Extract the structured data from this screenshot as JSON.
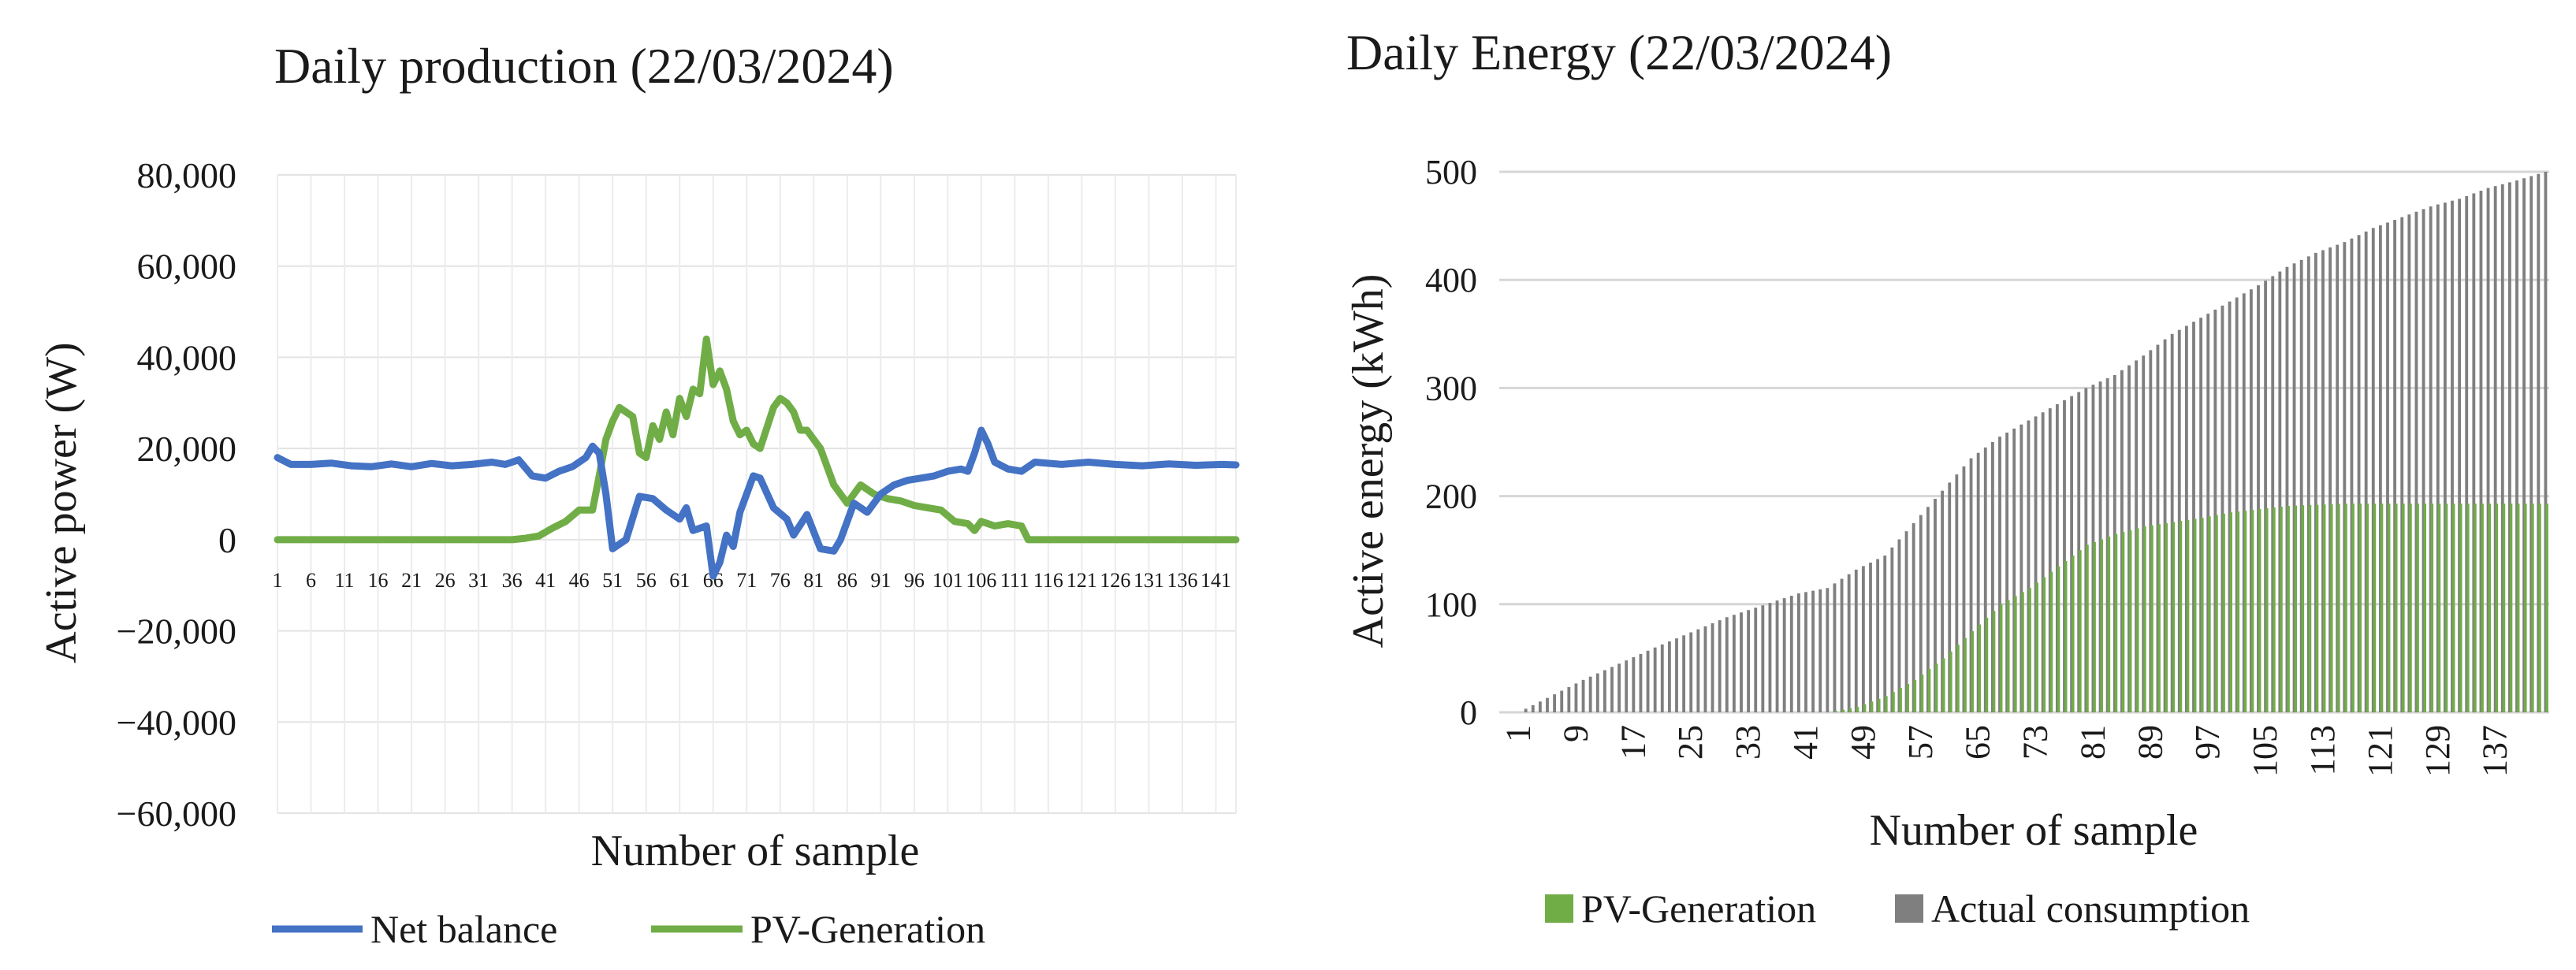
{
  "charts": {
    "left": {
      "title": "Daily production (22/03/2024)",
      "xlabel": "Number of sample",
      "ylabel": "Active power (W)",
      "ytick_labels": [
        "80,000",
        "60,000",
        "40,000",
        "20,000",
        "0",
        "−20,000",
        "−40,000",
        "−60,000"
      ],
      "legend": [
        "Net balance",
        "PV-Generation"
      ]
    },
    "right": {
      "title": "Daily Energy (22/03/2024)",
      "xlabel": "Number of sample",
      "ylabel": "Active energy (kWh)",
      "ytick_labels": [
        "500",
        "400",
        "300",
        "200",
        "100",
        "0"
      ],
      "legend": [
        "PV-Generation",
        "Actual consumption"
      ]
    }
  },
  "chart_data": [
    {
      "type": "line",
      "title": "Daily production (22/03/2024)",
      "xlabel": "Number of sample",
      "ylabel": "Active power (W)",
      "xlim": [
        1,
        144
      ],
      "ylim": [
        -60000,
        80000
      ],
      "x_tick_labels": [
        "1",
        "6",
        "11",
        "16",
        "21",
        "26",
        "31",
        "36",
        "41",
        "46",
        "51",
        "56",
        "61",
        "66",
        "71",
        "76",
        "81",
        "86",
        "91",
        "96",
        "101",
        "106",
        "111",
        "116",
        "121",
        "126",
        "131",
        "136",
        "141"
      ],
      "grid": true,
      "legend_position": "bottom",
      "series": [
        {
          "name": "Net balance",
          "color": "#4472C4",
          "points": [
            [
              1,
              18000
            ],
            [
              3,
              16500
            ],
            [
              6,
              16500
            ],
            [
              9,
              16800
            ],
            [
              12,
              16200
            ],
            [
              15,
              16000
            ],
            [
              18,
              16600
            ],
            [
              21,
              16000
            ],
            [
              24,
              16700
            ],
            [
              27,
              16200
            ],
            [
              30,
              16500
            ],
            [
              33,
              17000
            ],
            [
              35,
              16500
            ],
            [
              37,
              17500
            ],
            [
              39,
              14000
            ],
            [
              41,
              13500
            ],
            [
              43,
              15000
            ],
            [
              45,
              16000
            ],
            [
              47,
              18000
            ],
            [
              48,
              20500
            ],
            [
              49,
              19000
            ],
            [
              50,
              10000
            ],
            [
              51,
              -2000
            ],
            [
              53,
              0
            ],
            [
              55,
              9500
            ],
            [
              57,
              9000
            ],
            [
              59,
              6500
            ],
            [
              61,
              4500
            ],
            [
              62,
              7000
            ],
            [
              63,
              2000
            ],
            [
              65,
              3000
            ],
            [
              66,
              -8000
            ],
            [
              67,
              -5000
            ],
            [
              68,
              1000
            ],
            [
              69,
              -1500
            ],
            [
              70,
              6000
            ],
            [
              72,
              14000
            ],
            [
              73,
              13500
            ],
            [
              75,
              7000
            ],
            [
              77,
              4500
            ],
            [
              78,
              1000
            ],
            [
              80,
              5500
            ],
            [
              82,
              -2000
            ],
            [
              84,
              -2500
            ],
            [
              85,
              0
            ],
            [
              87,
              8000
            ],
            [
              89,
              6000
            ],
            [
              91,
              10000
            ],
            [
              93,
              12000
            ],
            [
              95,
              13000
            ],
            [
              97,
              13500
            ],
            [
              99,
              14000
            ],
            [
              101,
              15000
            ],
            [
              103,
              15500
            ],
            [
              104,
              15000
            ],
            [
              105,
              19000
            ],
            [
              106,
              24000
            ],
            [
              107,
              21000
            ],
            [
              108,
              17000
            ],
            [
              110,
              15500
            ],
            [
              112,
              15000
            ],
            [
              114,
              17000
            ],
            [
              118,
              16500
            ],
            [
              122,
              17000
            ],
            [
              126,
              16500
            ],
            [
              130,
              16200
            ],
            [
              134,
              16600
            ],
            [
              138,
              16300
            ],
            [
              142,
              16500
            ],
            [
              144,
              16400
            ]
          ]
        },
        {
          "name": "PV-Generation",
          "color": "#70AD47",
          "points": [
            [
              1,
              0
            ],
            [
              36,
              0
            ],
            [
              38,
              300
            ],
            [
              40,
              800
            ],
            [
              42,
              2500
            ],
            [
              44,
              4000
            ],
            [
              46,
              6500
            ],
            [
              48,
              6500
            ],
            [
              49,
              14000
            ],
            [
              50,
              22000
            ],
            [
              51,
              26000
            ],
            [
              52,
              29000
            ],
            [
              53,
              28000
            ],
            [
              54,
              27000
            ],
            [
              55,
              19000
            ],
            [
              56,
              18000
            ],
            [
              57,
              25000
            ],
            [
              58,
              22000
            ],
            [
              59,
              28000
            ],
            [
              60,
              23000
            ],
            [
              61,
              31000
            ],
            [
              62,
              27000
            ],
            [
              63,
              33000
            ],
            [
              64,
              32000
            ],
            [
              65,
              44000
            ],
            [
              66,
              34000
            ],
            [
              67,
              37000
            ],
            [
              68,
              33000
            ],
            [
              69,
              26000
            ],
            [
              70,
              23000
            ],
            [
              71,
              24000
            ],
            [
              72,
              21000
            ],
            [
              73,
              20000
            ],
            [
              75,
              29000
            ],
            [
              76,
              31000
            ],
            [
              77,
              30000
            ],
            [
              78,
              28000
            ],
            [
              79,
              24000
            ],
            [
              80,
              24000
            ],
            [
              81,
              22000
            ],
            [
              82,
              20000
            ],
            [
              84,
              12000
            ],
            [
              86,
              8000
            ],
            [
              88,
              12000
            ],
            [
              90,
              10000
            ],
            [
              92,
              9000
            ],
            [
              94,
              8500
            ],
            [
              96,
              7500
            ],
            [
              98,
              7000
            ],
            [
              100,
              6500
            ],
            [
              102,
              4000
            ],
            [
              104,
              3500
            ],
            [
              105,
              2000
            ],
            [
              106,
              4000
            ],
            [
              108,
              3000
            ],
            [
              110,
              3500
            ],
            [
              112,
              3000
            ],
            [
              113,
              0
            ],
            [
              144,
              0
            ]
          ]
        }
      ]
    },
    {
      "type": "bar",
      "title": "Daily Energy (22/03/2024)",
      "xlabel": "Number of sample",
      "ylabel": "Active energy (kWh)",
      "n_samples": 144,
      "ylim": [
        0,
        500
      ],
      "x_tick_labels": [
        "1",
        "9",
        "17",
        "25",
        "33",
        "41",
        "49",
        "57",
        "65",
        "73",
        "81",
        "89",
        "97",
        "105",
        "113",
        "121",
        "129",
        "137"
      ],
      "grid": true,
      "legend_position": "bottom",
      "series": [
        {
          "name": "PV-Generation",
          "color": "#70AD47",
          "points": [
            [
              1,
              0
            ],
            [
              44,
              0
            ],
            [
              48,
              5
            ],
            [
              52,
              15
            ],
            [
              56,
              30
            ],
            [
              60,
              50
            ],
            [
              64,
              75
            ],
            [
              68,
              100
            ],
            [
              72,
              115
            ],
            [
              76,
              135
            ],
            [
              80,
              155
            ],
            [
              84,
              165
            ],
            [
              88,
              172
            ],
            [
              92,
              176
            ],
            [
              96,
              180
            ],
            [
              100,
              185
            ],
            [
              104,
              188
            ],
            [
              108,
              191
            ],
            [
              112,
              192
            ],
            [
              116,
              193
            ],
            [
              144,
              193
            ]
          ]
        },
        {
          "name": "Actual consumption",
          "color": "#7F7F7F",
          "points": [
            [
              1,
              0
            ],
            [
              10,
              30
            ],
            [
              20,
              60
            ],
            [
              30,
              88
            ],
            [
              40,
              110
            ],
            [
              44,
              115
            ],
            [
              48,
              132
            ],
            [
              52,
              145
            ],
            [
              56,
              175
            ],
            [
              60,
              205
            ],
            [
              64,
              235
            ],
            [
              68,
              255
            ],
            [
              72,
              270
            ],
            [
              76,
              285
            ],
            [
              80,
              300
            ],
            [
              84,
              312
            ],
            [
              88,
              330
            ],
            [
              92,
              350
            ],
            [
              96,
              365
            ],
            [
              100,
              380
            ],
            [
              104,
              395
            ],
            [
              108,
              412
            ],
            [
              112,
              425
            ],
            [
              116,
              435
            ],
            [
              120,
              448
            ],
            [
              124,
              458
            ],
            [
              128,
              468
            ],
            [
              132,
              475
            ],
            [
              136,
              485
            ],
            [
              140,
              492
            ],
            [
              144,
              500
            ]
          ]
        }
      ]
    }
  ]
}
